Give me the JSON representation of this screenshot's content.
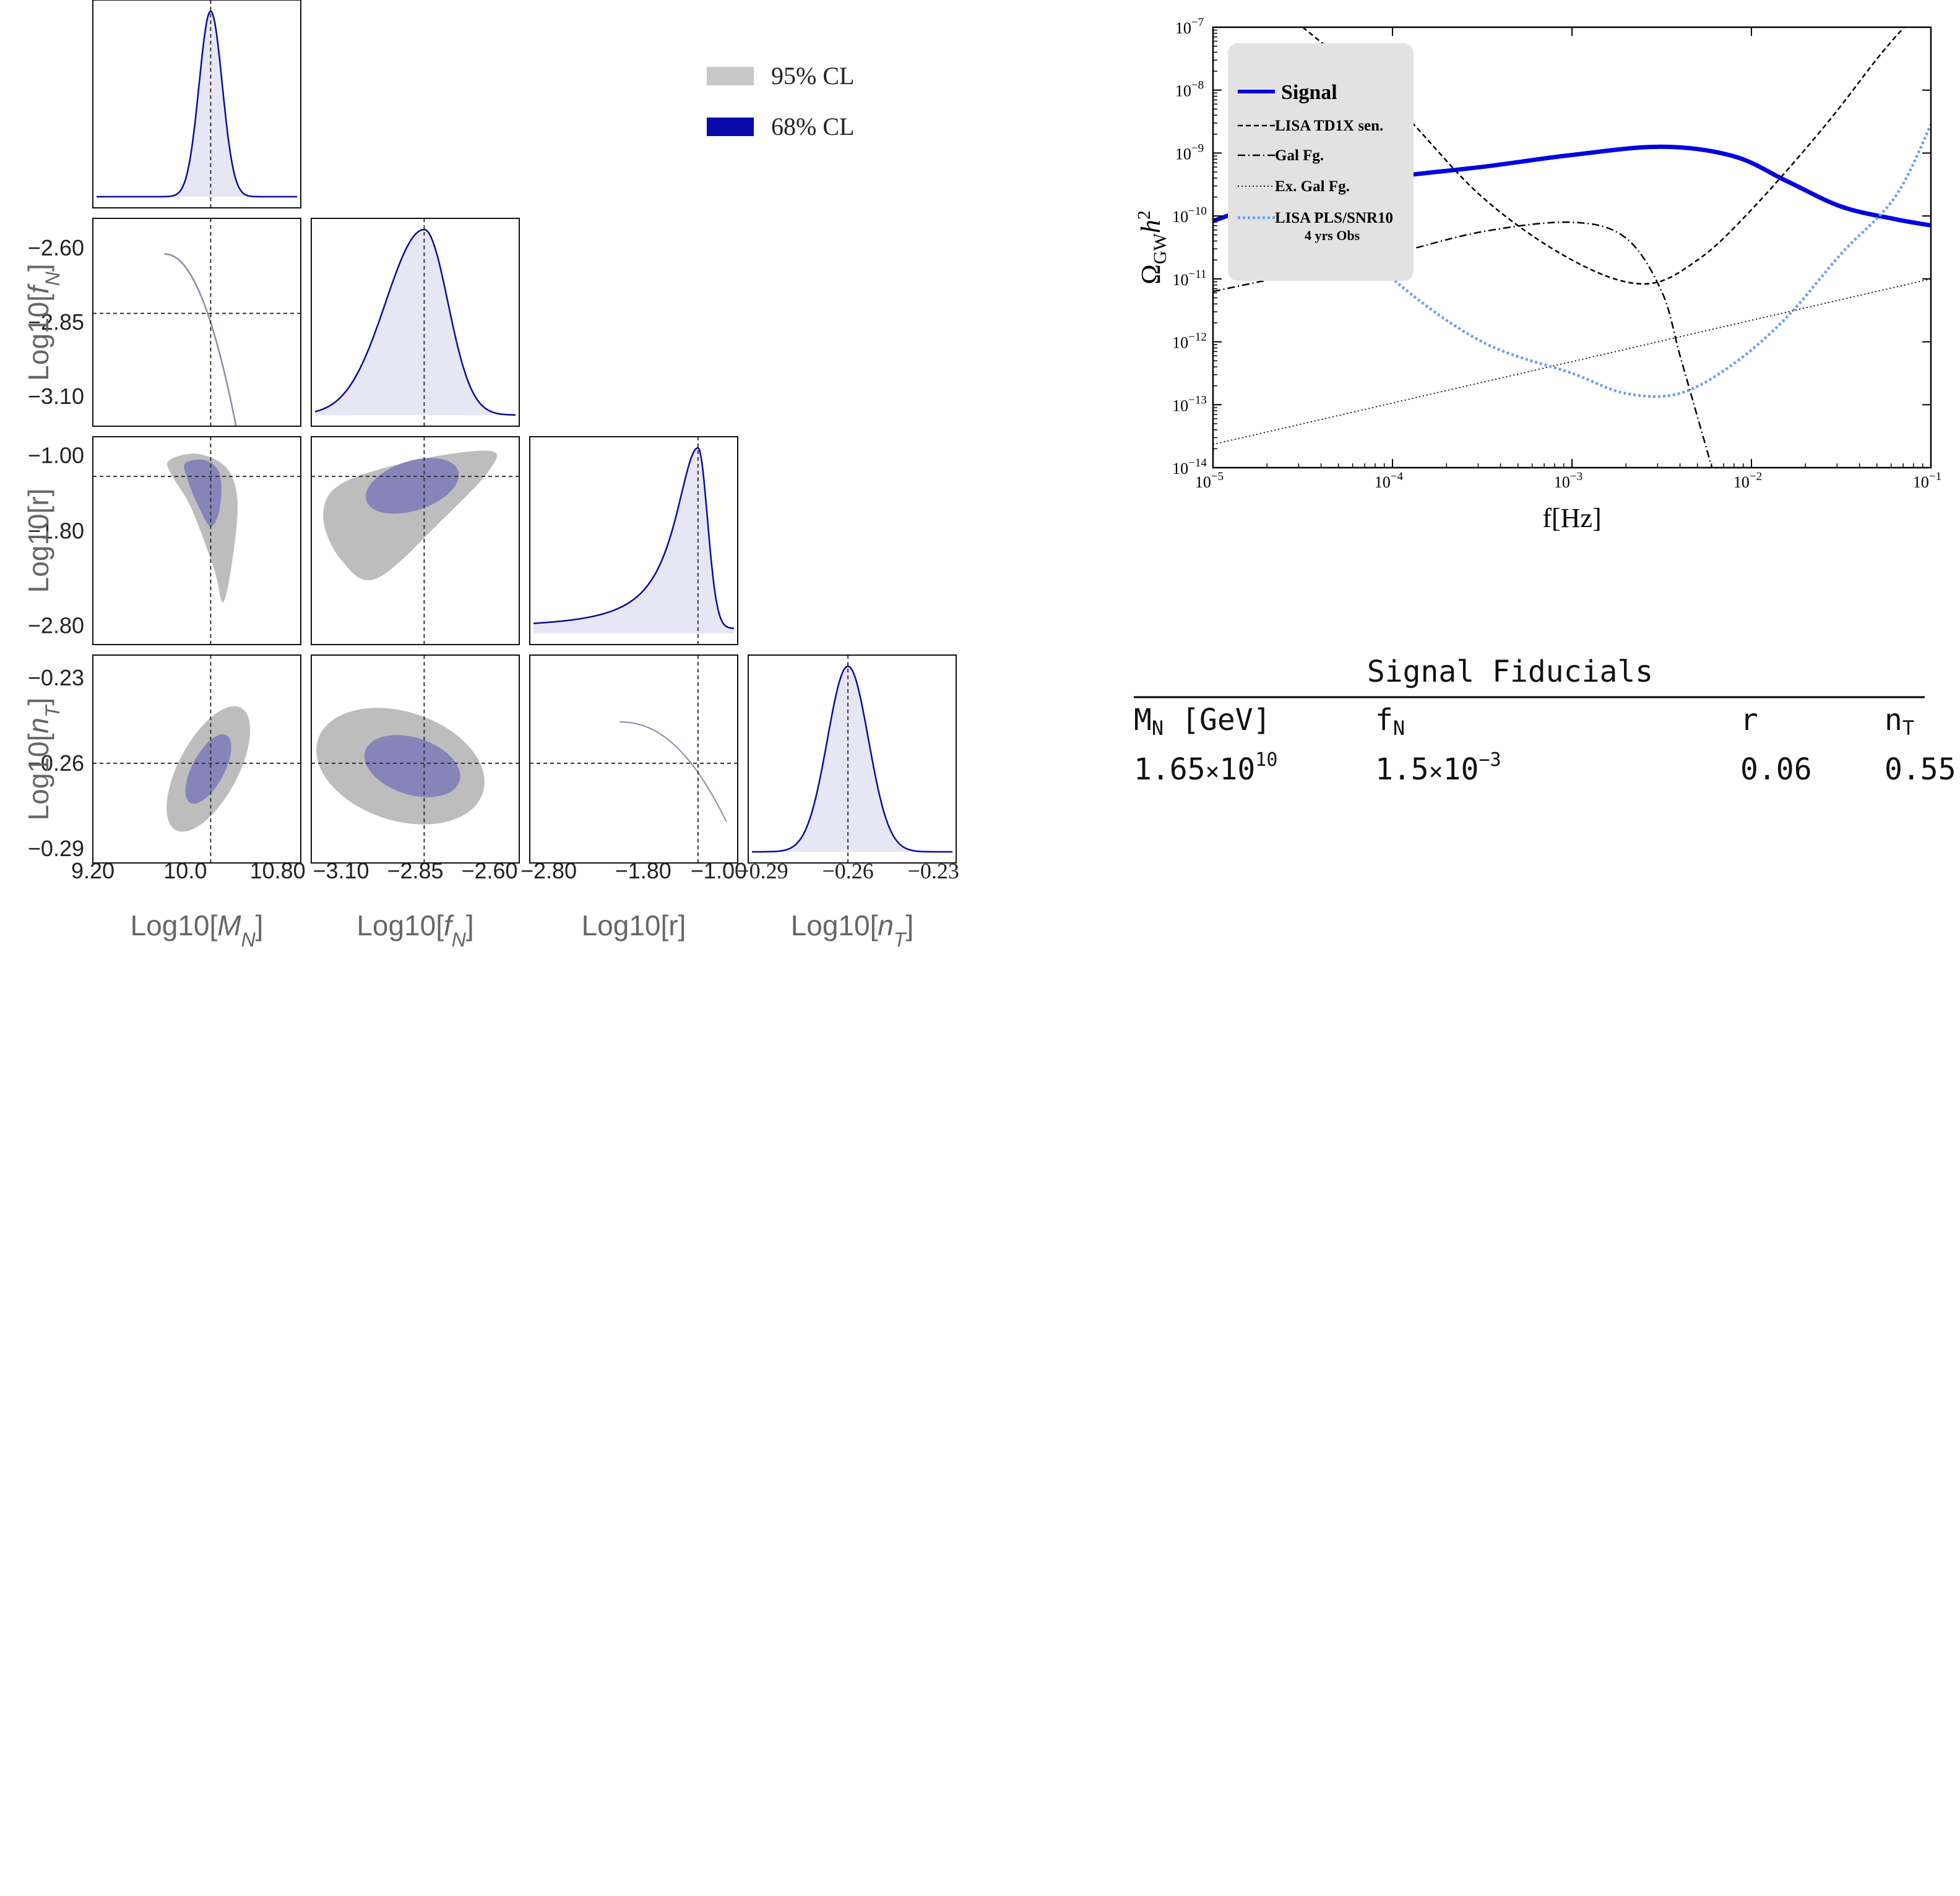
{
  "chart_data": [
    {
      "id": "corner",
      "type": "corner-plot",
      "title": "",
      "parameters": [
        {
          "key": "MN",
          "label": "Log10[M_N]",
          "range": [
            9.2,
            11.0
          ],
          "fiducial": 10.22,
          "ticks": [
            "9.20",
            "10.0",
            "10.80"
          ],
          "tick_values": [
            9.2,
            10.0,
            10.8
          ]
        },
        {
          "key": "fN",
          "label": "Log10[f_N]",
          "range": [
            -3.2,
            -2.5
          ],
          "fiducial": -2.82,
          "ticks": [
            "-3.10",
            "-2.85",
            "-2.60"
          ],
          "tick_values": [
            -3.1,
            -2.85,
            -2.6
          ]
        },
        {
          "key": "r",
          "label": "Log10[r]",
          "range": [
            -3.0,
            -0.8
          ],
          "fiducial": -1.22,
          "ticks": [
            "-2.80",
            "-1.80",
            "-1.00"
          ],
          "tick_values": [
            -2.8,
            -1.8,
            -1.0
          ]
        },
        {
          "key": "nT",
          "label": "Log10[n_T]",
          "range": [
            -0.295,
            -0.222
          ],
          "fiducial": -0.26,
          "ticks": [
            "-0.29",
            "-0.26",
            "-0.23"
          ],
          "tick_values": [
            -0.29,
            -0.26,
            -0.23
          ]
        }
      ],
      "row_tick_labels": {
        "fN": [
          "-2.60",
          "-2.85",
          "-3.10"
        ],
        "r": [
          "-1.00",
          "-1.80",
          "-2.80"
        ],
        "nT": [
          "-0.23",
          "-0.26",
          "-0.29"
        ]
      },
      "marginals": [
        {
          "param": "MN",
          "peak": 10.22,
          "sigma": 0.1,
          "shape": "gaussian"
        },
        {
          "param": "fN",
          "peak": -2.82,
          "sigma_left": 0.13,
          "sigma_right": 0.08,
          "shape": "skewed"
        },
        {
          "param": "r",
          "peak": -1.22,
          "sigma_left": 0.4,
          "sigma_right": 0.1,
          "shape": "left-tailed"
        },
        {
          "param": "nT",
          "peak": -0.26,
          "sigma": 0.0072,
          "shape": "gaussian"
        }
      ],
      "legend": [
        {
          "label": "95% CL",
          "color": "#c8c8c8"
        },
        {
          "label": "68% CL",
          "color": "#0a0aa8"
        }
      ],
      "colors": {
        "cl95": "#bdbdbd",
        "cl68": "#8585b9",
        "marginal_line": "#0a0a9c",
        "marginal_fill": "#e6e6f5",
        "degenerate_line": "#8a8aa8"
      }
    },
    {
      "id": "gw-spectrum",
      "type": "line",
      "xscale": "log",
      "yscale": "log",
      "xlim": [
        1e-05,
        0.1
      ],
      "ylim": [
        1e-14,
        1e-07
      ],
      "xlabel": "f[Hz]",
      "ylabel": "Ω_GW h²",
      "x_ticks": [
        -5,
        -4,
        -3,
        -2,
        -1
      ],
      "y_ticks": [
        -14,
        -13,
        -12,
        -11,
        -10,
        -9,
        -8,
        -7
      ],
      "series": [
        {
          "name": "Signal",
          "style": "solid",
          "color": "#0000e0",
          "points": [
            [
              -5,
              -10.08
            ],
            [
              -4.5,
              -9.6
            ],
            [
              -4,
              -9.38
            ],
            [
              -3.5,
              -9.22
            ],
            [
              -3,
              -9.03
            ],
            [
              -2.5,
              -8.9
            ],
            [
              -2.1,
              -9.05
            ],
            [
              -1.8,
              -9.45
            ],
            [
              -1.5,
              -9.85
            ],
            [
              -1.2,
              -10.05
            ],
            [
              -1.0,
              -10.15
            ]
          ]
        },
        {
          "name": "LISA TD1X sen.",
          "style": "dashed",
          "color": "#000000",
          "points": [
            [
              -4.5,
              -7.0
            ],
            [
              -4,
              -8.2
            ],
            [
              -3.5,
              -9.7
            ],
            [
              -3,
              -10.7
            ],
            [
              -2.6,
              -11.08
            ],
            [
              -2.3,
              -10.7
            ],
            [
              -2.0,
              -9.9
            ],
            [
              -1.6,
              -8.6
            ],
            [
              -1.3,
              -7.5
            ],
            [
              -1.15,
              -7.0
            ]
          ]
        },
        {
          "name": "Gal Fg.",
          "style": "dashdot",
          "color": "#000000",
          "points": [
            [
              -5,
              -11.2
            ],
            [
              -4.5,
              -10.9
            ],
            [
              -4,
              -10.6
            ],
            [
              -3.5,
              -10.25
            ],
            [
              -3.0,
              -10.1
            ],
            [
              -2.7,
              -10.35
            ],
            [
              -2.5,
              -11.2
            ],
            [
              -2.4,
              -12.2
            ],
            [
              -2.3,
              -13.2
            ],
            [
              -2.22,
              -14.0
            ]
          ]
        },
        {
          "name": "Ex. Gal Fg.",
          "style": "dotted",
          "color": "#000000",
          "points": [
            [
              -5,
              -13.63
            ],
            [
              -1,
              -11.0
            ]
          ]
        },
        {
          "name": "LISA PLS/SNR10 4 yrs Obs",
          "style": "dotted-thick",
          "color": "#6e9ff0",
          "points": [
            [
              -4.5,
              -9.6
            ],
            [
              -4.0,
              -11.0
            ],
            [
              -3.5,
              -12.0
            ],
            [
              -3.0,
              -12.5
            ],
            [
              -2.7,
              -12.82
            ],
            [
              -2.4,
              -12.82
            ],
            [
              -2.1,
              -12.35
            ],
            [
              -1.8,
              -11.6
            ],
            [
              -1.5,
              -10.6
            ],
            [
              -1.2,
              -9.7
            ],
            [
              -1.0,
              -8.55
            ]
          ]
        }
      ],
      "legend_entries": [
        {
          "label": "Signal",
          "size": "large"
        },
        {
          "label": "LISA TD1X sen.",
          "size": "small"
        },
        {
          "label": "Gal Fg.",
          "size": "small"
        },
        {
          "label": "Ex. Gal Fg.",
          "size": "small"
        },
        {
          "label": "LISA PLS/SNR10",
          "line2": "4 yrs Obs",
          "size": "small"
        }
      ]
    }
  ],
  "table": {
    "title": "Signal Fiducials",
    "headers": [
      {
        "main": "M",
        "sub": "N",
        "suffix": " [GeV]"
      },
      {
        "main": "f",
        "sub": "N",
        "suffix": ""
      },
      {
        "main": "r",
        "sub": "",
        "suffix": ""
      },
      {
        "main": "n",
        "sub": "T",
        "suffix": ""
      }
    ],
    "values": [
      {
        "mantissa": "1.65",
        "times": "×",
        "base": "10",
        "exp": "10"
      },
      {
        "mantissa": "1.5",
        "times": "×",
        "base": "10",
        "exp": "-3"
      },
      {
        "plain": "0.06"
      },
      {
        "plain": "0.55"
      }
    ]
  },
  "axis_titles": {
    "x": [
      "Log10[",
      "M",
      "N",
      "]"
    ],
    "fN_prefix": "Log10[",
    "r_label": "Log10[r]"
  }
}
